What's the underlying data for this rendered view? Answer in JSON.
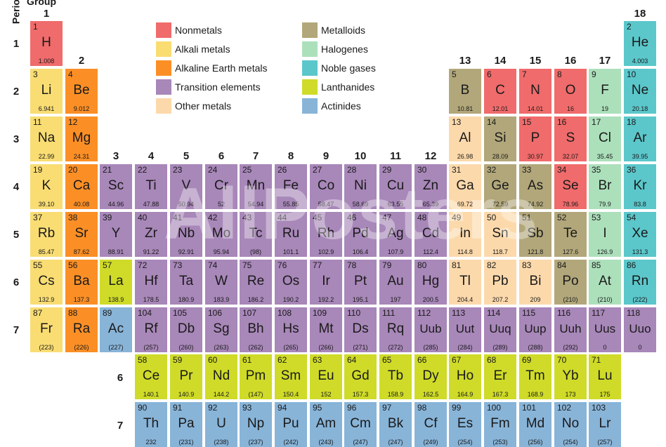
{
  "header": {
    "group_title": "Group",
    "period_title": "Period"
  },
  "group_numbers": [
    "1",
    "2",
    "3",
    "4",
    "5",
    "6",
    "7",
    "8",
    "9",
    "10",
    "11",
    "12",
    "13",
    "14",
    "15",
    "16",
    "17",
    "18"
  ],
  "period_numbers": [
    "1",
    "2",
    "3",
    "4",
    "5",
    "6",
    "7"
  ],
  "series_row_labels": [
    "6",
    "7"
  ],
  "watermark": "AllPosters",
  "colors": {
    "nonmetal": "#f06b6b",
    "alkali": "#f9dd73",
    "alkaline": "#fb8f26",
    "transition": "#a887b9",
    "other": "#fcd9ab",
    "metalloid": "#b2a77a",
    "halogen": "#ace0bb",
    "noble": "#5bc7cb",
    "lanthanide": "#cfdb28",
    "actinide": "#88b4d8"
  },
  "legend": [
    {
      "label": "Nonmetals",
      "cat": "nonmetal"
    },
    {
      "label": "Alkali metals",
      "cat": "alkali"
    },
    {
      "label": "Alkaline Earth metals",
      "cat": "alkaline"
    },
    {
      "label": "Transition elements",
      "cat": "transition"
    },
    {
      "label": "Other metals",
      "cat": "other"
    },
    {
      "label": "Metalloids",
      "cat": "metalloid"
    },
    {
      "label": "Halogenes",
      "cat": "halogen"
    },
    {
      "label": "Noble gases",
      "cat": "noble"
    },
    {
      "label": "Lanthanides",
      "cat": "lanthanide"
    },
    {
      "label": "Actinides",
      "cat": "actinide"
    }
  ],
  "elements": [
    {
      "n": "1",
      "s": "H",
      "m": "1.008",
      "g": 1,
      "p": 1,
      "c": "nonmetal"
    },
    {
      "n": "2",
      "s": "He",
      "m": "4.003",
      "g": 18,
      "p": 1,
      "c": "noble"
    },
    {
      "n": "3",
      "s": "Li",
      "m": "6.941",
      "g": 1,
      "p": 2,
      "c": "alkali"
    },
    {
      "n": "4",
      "s": "Be",
      "m": "9.012",
      "g": 2,
      "p": 2,
      "c": "alkaline"
    },
    {
      "n": "5",
      "s": "B",
      "m": "10.81",
      "g": 13,
      "p": 2,
      "c": "metalloid"
    },
    {
      "n": "6",
      "s": "C",
      "m": "12.01",
      "g": 14,
      "p": 2,
      "c": "nonmetal"
    },
    {
      "n": "7",
      "s": "N",
      "m": "14.01",
      "g": 15,
      "p": 2,
      "c": "nonmetal"
    },
    {
      "n": "8",
      "s": "O",
      "m": "16",
      "g": 16,
      "p": 2,
      "c": "nonmetal"
    },
    {
      "n": "9",
      "s": "F",
      "m": "19",
      "g": 17,
      "p": 2,
      "c": "halogen"
    },
    {
      "n": "10",
      "s": "Ne",
      "m": "20.18",
      "g": 18,
      "p": 2,
      "c": "noble"
    },
    {
      "n": "11",
      "s": "Na",
      "m": "22.99",
      "g": 1,
      "p": 3,
      "c": "alkali"
    },
    {
      "n": "12",
      "s": "Mg",
      "m": "24.31",
      "g": 2,
      "p": 3,
      "c": "alkaline"
    },
    {
      "n": "13",
      "s": "Al",
      "m": "26.98",
      "g": 13,
      "p": 3,
      "c": "other"
    },
    {
      "n": "14",
      "s": "Si",
      "m": "28.09",
      "g": 14,
      "p": 3,
      "c": "metalloid"
    },
    {
      "n": "15",
      "s": "P",
      "m": "30.97",
      "g": 15,
      "p": 3,
      "c": "nonmetal"
    },
    {
      "n": "16",
      "s": "S",
      "m": "32.07",
      "g": 16,
      "p": 3,
      "c": "nonmetal"
    },
    {
      "n": "17",
      "s": "Cl",
      "m": "35.45",
      "g": 17,
      "p": 3,
      "c": "halogen"
    },
    {
      "n": "18",
      "s": "Ar",
      "m": "39.95",
      "g": 18,
      "p": 3,
      "c": "noble"
    },
    {
      "n": "19",
      "s": "K",
      "m": "39.10",
      "g": 1,
      "p": 4,
      "c": "alkali"
    },
    {
      "n": "20",
      "s": "Ca",
      "m": "40.08",
      "g": 2,
      "p": 4,
      "c": "alkaline"
    },
    {
      "n": "21",
      "s": "Sc",
      "m": "44.96",
      "g": 3,
      "p": 4,
      "c": "transition"
    },
    {
      "n": "22",
      "s": "Ti",
      "m": "47.88",
      "g": 4,
      "p": 4,
      "c": "transition"
    },
    {
      "n": "23",
      "s": "V",
      "m": "50.94",
      "g": 5,
      "p": 4,
      "c": "transition"
    },
    {
      "n": "24",
      "s": "Cr",
      "m": "52",
      "g": 6,
      "p": 4,
      "c": "transition"
    },
    {
      "n": "25",
      "s": "Mn",
      "m": "54.94",
      "g": 7,
      "p": 4,
      "c": "transition"
    },
    {
      "n": "26",
      "s": "Fe",
      "m": "55.85",
      "g": 8,
      "p": 4,
      "c": "transition"
    },
    {
      "n": "27",
      "s": "Co",
      "m": "58.47",
      "g": 9,
      "p": 4,
      "c": "transition"
    },
    {
      "n": "28",
      "s": "Ni",
      "m": "58.69",
      "g": 10,
      "p": 4,
      "c": "transition"
    },
    {
      "n": "29",
      "s": "Cu",
      "m": "63.55",
      "g": 11,
      "p": 4,
      "c": "transition"
    },
    {
      "n": "30",
      "s": "Zn",
      "m": "65.39",
      "g": 12,
      "p": 4,
      "c": "transition"
    },
    {
      "n": "31",
      "s": "Ga",
      "m": "69.72",
      "g": 13,
      "p": 4,
      "c": "other"
    },
    {
      "n": "32",
      "s": "Ge",
      "m": "72.59",
      "g": 14,
      "p": 4,
      "c": "metalloid"
    },
    {
      "n": "33",
      "s": "As",
      "m": "74.92",
      "g": 15,
      "p": 4,
      "c": "metalloid"
    },
    {
      "n": "34",
      "s": "Se",
      "m": "78.96",
      "g": 16,
      "p": 4,
      "c": "nonmetal"
    },
    {
      "n": "35",
      "s": "Br",
      "m": "79.9",
      "g": 17,
      "p": 4,
      "c": "halogen"
    },
    {
      "n": "36",
      "s": "Kr",
      "m": "83.8",
      "g": 18,
      "p": 4,
      "c": "noble"
    },
    {
      "n": "37",
      "s": "Rb",
      "m": "85.47",
      "g": 1,
      "p": 5,
      "c": "alkali"
    },
    {
      "n": "38",
      "s": "Sr",
      "m": "87.62",
      "g": 2,
      "p": 5,
      "c": "alkaline"
    },
    {
      "n": "39",
      "s": "Y",
      "m": "88.91",
      "g": 3,
      "p": 5,
      "c": "transition"
    },
    {
      "n": "40",
      "s": "Zr",
      "m": "91.22",
      "g": 4,
      "p": 5,
      "c": "transition"
    },
    {
      "n": "41",
      "s": "Nb",
      "m": "92.91",
      "g": 5,
      "p": 5,
      "c": "transition"
    },
    {
      "n": "42",
      "s": "Mo",
      "m": "95.94",
      "g": 6,
      "p": 5,
      "c": "transition"
    },
    {
      "n": "43",
      "s": "Tc",
      "m": "(98)",
      "g": 7,
      "p": 5,
      "c": "transition"
    },
    {
      "n": "44",
      "s": "Ru",
      "m": "101.1",
      "g": 8,
      "p": 5,
      "c": "transition"
    },
    {
      "n": "45",
      "s": "Rh",
      "m": "102.9",
      "g": 9,
      "p": 5,
      "c": "transition"
    },
    {
      "n": "46",
      "s": "Pd",
      "m": "106.4",
      "g": 10,
      "p": 5,
      "c": "transition"
    },
    {
      "n": "47",
      "s": "Ag",
      "m": "107.9",
      "g": 11,
      "p": 5,
      "c": "transition"
    },
    {
      "n": "48",
      "s": "Cd",
      "m": "112.4",
      "g": 12,
      "p": 5,
      "c": "transition"
    },
    {
      "n": "49",
      "s": "In",
      "m": "114.8",
      "g": 13,
      "p": 5,
      "c": "other"
    },
    {
      "n": "50",
      "s": "Sn",
      "m": "118.7",
      "g": 14,
      "p": 5,
      "c": "other"
    },
    {
      "n": "51",
      "s": "Sb",
      "m": "121.8",
      "g": 15,
      "p": 5,
      "c": "metalloid"
    },
    {
      "n": "52",
      "s": "Te",
      "m": "127.6",
      "g": 16,
      "p": 5,
      "c": "metalloid"
    },
    {
      "n": "53",
      "s": "I",
      "m": "126.9",
      "g": 17,
      "p": 5,
      "c": "halogen"
    },
    {
      "n": "54",
      "s": "Xe",
      "m": "131.3",
      "g": 18,
      "p": 5,
      "c": "noble"
    },
    {
      "n": "55",
      "s": "Cs",
      "m": "132.9",
      "g": 1,
      "p": 6,
      "c": "alkali"
    },
    {
      "n": "56",
      "s": "Ba",
      "m": "137.3",
      "g": 2,
      "p": 6,
      "c": "alkaline"
    },
    {
      "n": "57",
      "s": "La",
      "m": "138.9",
      "g": 3,
      "p": 6,
      "c": "lanthanide"
    },
    {
      "n": "72",
      "s": "Hf",
      "m": "178.5",
      "g": 4,
      "p": 6,
      "c": "transition"
    },
    {
      "n": "73",
      "s": "Ta",
      "m": "180.9",
      "g": 5,
      "p": 6,
      "c": "transition"
    },
    {
      "n": "74",
      "s": "W",
      "m": "183.9",
      "g": 6,
      "p": 6,
      "c": "transition"
    },
    {
      "n": "75",
      "s": "Re",
      "m": "186.2",
      "g": 7,
      "p": 6,
      "c": "transition"
    },
    {
      "n": "76",
      "s": "Os",
      "m": "190.2",
      "g": 8,
      "p": 6,
      "c": "transition"
    },
    {
      "n": "77",
      "s": "Ir",
      "m": "192.2",
      "g": 9,
      "p": 6,
      "c": "transition"
    },
    {
      "n": "78",
      "s": "Pt",
      "m": "195.1",
      "g": 10,
      "p": 6,
      "c": "transition"
    },
    {
      "n": "79",
      "s": "Au",
      "m": "197",
      "g": 11,
      "p": 6,
      "c": "transition"
    },
    {
      "n": "80",
      "s": "Hg",
      "m": "200.5",
      "g": 12,
      "p": 6,
      "c": "transition"
    },
    {
      "n": "81",
      "s": "Tl",
      "m": "204.4",
      "g": 13,
      "p": 6,
      "c": "other"
    },
    {
      "n": "82",
      "s": "Pb",
      "m": "207.2",
      "g": 14,
      "p": 6,
      "c": "other"
    },
    {
      "n": "83",
      "s": "Bi",
      "m": "209",
      "g": 15,
      "p": 6,
      "c": "other"
    },
    {
      "n": "84",
      "s": "Po",
      "m": "(210)",
      "g": 16,
      "p": 6,
      "c": "metalloid"
    },
    {
      "n": "85",
      "s": "At",
      "m": "(210)",
      "g": 17,
      "p": 6,
      "c": "halogen"
    },
    {
      "n": "86",
      "s": "Rn",
      "m": "(222)",
      "g": 18,
      "p": 6,
      "c": "noble"
    },
    {
      "n": "87",
      "s": "Fr",
      "m": "(223)",
      "g": 1,
      "p": 7,
      "c": "alkali"
    },
    {
      "n": "88",
      "s": "Ra",
      "m": "(226)",
      "g": 2,
      "p": 7,
      "c": "alkaline"
    },
    {
      "n": "89",
      "s": "Ac",
      "m": "(227)",
      "g": 3,
      "p": 7,
      "c": "actinide"
    },
    {
      "n": "104",
      "s": "Rf",
      "m": "(257)",
      "g": 4,
      "p": 7,
      "c": "transition"
    },
    {
      "n": "105",
      "s": "Db",
      "m": "(260)",
      "g": 5,
      "p": 7,
      "c": "transition"
    },
    {
      "n": "106",
      "s": "Sg",
      "m": "(263)",
      "g": 6,
      "p": 7,
      "c": "transition"
    },
    {
      "n": "107",
      "s": "Bh",
      "m": "(262)",
      "g": 7,
      "p": 7,
      "c": "transition"
    },
    {
      "n": "108",
      "s": "Hs",
      "m": "(265)",
      "g": 8,
      "p": 7,
      "c": "transition"
    },
    {
      "n": "109",
      "s": "Mt",
      "m": "(266)",
      "g": 9,
      "p": 7,
      "c": "transition"
    },
    {
      "n": "110",
      "s": "Ds",
      "m": "(271)",
      "g": 10,
      "p": 7,
      "c": "transition"
    },
    {
      "n": "111",
      "s": "Rq",
      "m": "(272)",
      "g": 11,
      "p": 7,
      "c": "transition"
    },
    {
      "n": "112",
      "s": "Uub",
      "m": "(285)",
      "g": 12,
      "p": 7,
      "c": "transition"
    },
    {
      "n": "113",
      "s": "Uut",
      "m": "(284)",
      "g": 13,
      "p": 7,
      "c": "transition"
    },
    {
      "n": "114",
      "s": "Uuq",
      "m": "(289)",
      "g": 14,
      "p": 7,
      "c": "transition"
    },
    {
      "n": "115",
      "s": "Uup",
      "m": "(288)",
      "g": 15,
      "p": 7,
      "c": "transition"
    },
    {
      "n": "116",
      "s": "Uuh",
      "m": "(292)",
      "g": 16,
      "p": 7,
      "c": "transition"
    },
    {
      "n": "117",
      "s": "Uus",
      "m": "0",
      "g": 17,
      "p": 7,
      "c": "transition"
    },
    {
      "n": "118",
      "s": "Uuo",
      "m": "0",
      "g": 18,
      "p": 7,
      "c": "transition"
    },
    {
      "n": "58",
      "s": "Ce",
      "m": "140.1",
      "g": 4,
      "p": 8,
      "c": "lanthanide"
    },
    {
      "n": "59",
      "s": "Pr",
      "m": "140.9",
      "g": 5,
      "p": 8,
      "c": "lanthanide"
    },
    {
      "n": "60",
      "s": "Nd",
      "m": "144.2",
      "g": 6,
      "p": 8,
      "c": "lanthanide"
    },
    {
      "n": "61",
      "s": "Pm",
      "m": "(147)",
      "g": 7,
      "p": 8,
      "c": "lanthanide"
    },
    {
      "n": "62",
      "s": "Sm",
      "m": "150.4",
      "g": 8,
      "p": 8,
      "c": "lanthanide"
    },
    {
      "n": "63",
      "s": "Eu",
      "m": "152",
      "g": 9,
      "p": 8,
      "c": "lanthanide"
    },
    {
      "n": "64",
      "s": "Gd",
      "m": "157.3",
      "g": 10,
      "p": 8,
      "c": "lanthanide"
    },
    {
      "n": "65",
      "s": "Tb",
      "m": "158.9",
      "g": 11,
      "p": 8,
      "c": "lanthanide"
    },
    {
      "n": "66",
      "s": "Dy",
      "m": "162.5",
      "g": 12,
      "p": 8,
      "c": "lanthanide"
    },
    {
      "n": "67",
      "s": "Ho",
      "m": "164.9",
      "g": 13,
      "p": 8,
      "c": "lanthanide"
    },
    {
      "n": "68",
      "s": "Er",
      "m": "167.3",
      "g": 14,
      "p": 8,
      "c": "lanthanide"
    },
    {
      "n": "69",
      "s": "Tm",
      "m": "168.9",
      "g": 15,
      "p": 8,
      "c": "lanthanide"
    },
    {
      "n": "70",
      "s": "Yb",
      "m": "173",
      "g": 16,
      "p": 8,
      "c": "lanthanide"
    },
    {
      "n": "71",
      "s": "Lu",
      "m": "175",
      "g": 17,
      "p": 8,
      "c": "lanthanide"
    },
    {
      "n": "90",
      "s": "Th",
      "m": "232",
      "g": 4,
      "p": 9,
      "c": "actinide"
    },
    {
      "n": "91",
      "s": "Pa",
      "m": "(231)",
      "g": 5,
      "p": 9,
      "c": "actinide"
    },
    {
      "n": "92",
      "s": "U",
      "m": "(238)",
      "g": 6,
      "p": 9,
      "c": "actinide"
    },
    {
      "n": "93",
      "s": "Np",
      "m": "(237)",
      "g": 7,
      "p": 9,
      "c": "actinide"
    },
    {
      "n": "94",
      "s": "Pu",
      "m": "(242)",
      "g": 8,
      "p": 9,
      "c": "actinide"
    },
    {
      "n": "95",
      "s": "Am",
      "m": "(243)",
      "g": 9,
      "p": 9,
      "c": "actinide"
    },
    {
      "n": "96",
      "s": "Cm",
      "m": "(247)",
      "g": 10,
      "p": 9,
      "c": "actinide"
    },
    {
      "n": "97",
      "s": "Bk",
      "m": "(247)",
      "g": 11,
      "p": 9,
      "c": "actinide"
    },
    {
      "n": "98",
      "s": "Cf",
      "m": "(249)",
      "g": 12,
      "p": 9,
      "c": "actinide"
    },
    {
      "n": "99",
      "s": "Es",
      "m": "(254)",
      "g": 13,
      "p": 9,
      "c": "actinide"
    },
    {
      "n": "100",
      "s": "Fm",
      "m": "(253)",
      "g": 14,
      "p": 9,
      "c": "actinide"
    },
    {
      "n": "101",
      "s": "Md",
      "m": "(256)",
      "g": 15,
      "p": 9,
      "c": "actinide"
    },
    {
      "n": "102",
      "s": "No",
      "m": "(254)",
      "g": 16,
      "p": 9,
      "c": "actinide"
    },
    {
      "n": "103",
      "s": "Lr",
      "m": "(257)",
      "g": 17,
      "p": 9,
      "c": "actinide"
    }
  ]
}
